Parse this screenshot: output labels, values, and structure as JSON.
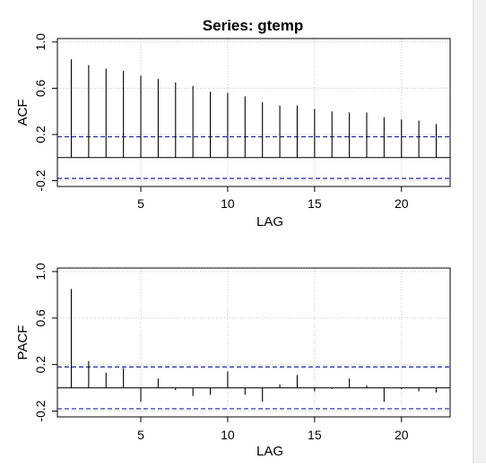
{
  "title": "Series:  gtemp",
  "ci_bound": 0.18,
  "colors": {
    "ci_line": "#1f1fa0",
    "grid": "#c8c8c8",
    "bars": "#000000"
  },
  "chart_data": [
    {
      "type": "bar",
      "name": "acf",
      "title": "Series:  gtemp",
      "xlabel": "LAG",
      "ylabel": "ACF",
      "xlim": [
        0.2,
        22.8
      ],
      "ylim": [
        -0.25,
        1.03
      ],
      "xticks": [
        5,
        10,
        15,
        20
      ],
      "xtick_labels": [
        "5",
        "10",
        "15",
        "20"
      ],
      "yticks": [
        -0.2,
        0.2,
        0.6,
        1.0
      ],
      "ytick_labels": [
        "-0.2",
        "0.2",
        "0.6",
        "1.0"
      ],
      "grid": true,
      "ci": [
        -0.18,
        0.18
      ],
      "x": [
        1,
        2,
        3,
        4,
        5,
        6,
        7,
        8,
        9,
        10,
        11,
        12,
        13,
        14,
        15,
        16,
        17,
        18,
        19,
        20,
        21,
        22
      ],
      "values": [
        0.85,
        0.8,
        0.77,
        0.75,
        0.71,
        0.68,
        0.65,
        0.62,
        0.57,
        0.56,
        0.53,
        0.48,
        0.45,
        0.45,
        0.42,
        0.4,
        0.39,
        0.39,
        0.35,
        0.33,
        0.32,
        0.29
      ]
    },
    {
      "type": "bar",
      "name": "pacf",
      "xlabel": "LAG",
      "ylabel": "PACF",
      "xlim": [
        0.2,
        22.8
      ],
      "ylim": [
        -0.25,
        1.03
      ],
      "xticks": [
        5,
        10,
        15,
        20
      ],
      "xtick_labels": [
        "5",
        "10",
        "15",
        "20"
      ],
      "yticks": [
        -0.2,
        0.2,
        0.6,
        1.0
      ],
      "ytick_labels": [
        "-0.2",
        "0.2",
        "0.6",
        "1.0"
      ],
      "grid": true,
      "ci": [
        -0.18,
        0.18
      ],
      "x": [
        1,
        2,
        3,
        4,
        5,
        6,
        7,
        8,
        9,
        10,
        11,
        12,
        13,
        14,
        15,
        16,
        17,
        18,
        19,
        20,
        21,
        22
      ],
      "values": [
        0.85,
        0.23,
        0.13,
        0.17,
        -0.12,
        0.08,
        -0.02,
        -0.07,
        -0.06,
        0.14,
        -0.06,
        -0.12,
        0.03,
        0.11,
        -0.03,
        -0.01,
        0.08,
        0.02,
        -0.12,
        -0.01,
        -0.03,
        -0.04
      ]
    }
  ]
}
